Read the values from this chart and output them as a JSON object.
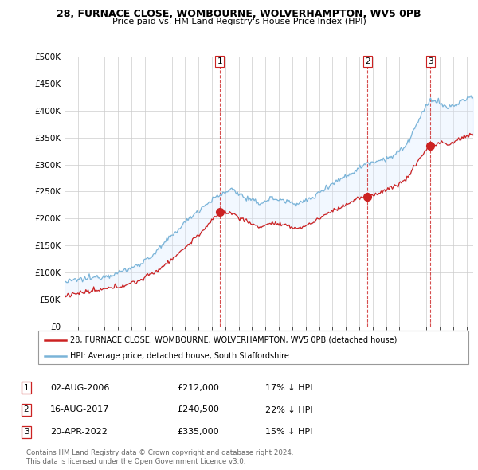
{
  "title": "28, FURNACE CLOSE, WOMBOURNE, WOLVERHAMPTON, WV5 0PB",
  "subtitle": "Price paid vs. HM Land Registry's House Price Index (HPI)",
  "hpi_color": "#7ab4d8",
  "price_color": "#cc2222",
  "dashed_color": "#cc2222",
  "fill_color": "#ddeeff",
  "ylim": [
    0,
    500000
  ],
  "yticks": [
    0,
    50000,
    100000,
    150000,
    200000,
    250000,
    300000,
    350000,
    400000,
    450000,
    500000
  ],
  "ytick_labels": [
    "£0",
    "£50K",
    "£100K",
    "£150K",
    "£200K",
    "£250K",
    "£300K",
    "£350K",
    "£400K",
    "£450K",
    "£500K"
  ],
  "legend_line1": "28, FURNACE CLOSE, WOMBOURNE, WOLVERHAMPTON, WV5 0PB (detached house)",
  "legend_line2": "HPI: Average price, detached house, South Staffordshire",
  "sale1_date": "02-AUG-2006",
  "sale1_price": "£212,000",
  "sale1_hpi": "17% ↓ HPI",
  "sale2_date": "16-AUG-2017",
  "sale2_price": "£240,500",
  "sale2_hpi": "22% ↓ HPI",
  "sale3_date": "20-APR-2022",
  "sale3_price": "£335,000",
  "sale3_hpi": "15% ↓ HPI",
  "footer1": "Contains HM Land Registry data © Crown copyright and database right 2024.",
  "footer2": "This data is licensed under the Open Government Licence v3.0.",
  "sale1_x": 2006.58,
  "sale1_y": 212000,
  "sale2_x": 2017.62,
  "sale2_y": 240500,
  "sale3_x": 2022.3,
  "sale3_y": 335000,
  "xmin": 1995.0,
  "xmax": 2025.5
}
